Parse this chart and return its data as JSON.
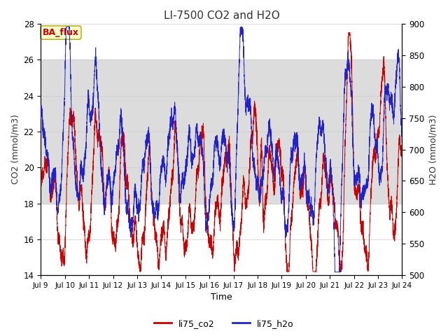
{
  "title": "LI-7500 CO2 and H2O",
  "xlabel": "Time",
  "ylabel_left": "CO2 (mmol/m3)",
  "ylabel_right": "H2O (mmol/m3)",
  "annotation_text": "BA_flux",
  "annotation_color": "#cc0000",
  "annotation_bg": "#ffffcc",
  "annotation_border": "#aaaa00",
  "xlim": [
    9,
    24
  ],
  "ylim_co2": [
    14,
    28
  ],
  "ylim_h2o": [
    500,
    900
  ],
  "xticks": [
    9,
    10,
    11,
    12,
    13,
    14,
    15,
    16,
    17,
    18,
    19,
    20,
    21,
    22,
    23,
    24
  ],
  "xticklabels": [
    "Jul 9",
    "Jul 10",
    "Jul 11",
    "Jul 12",
    "Jul 13",
    "Jul 14",
    "Jul 15",
    "Jul 16",
    "Jul 17",
    "Jul 18",
    "Jul 19",
    "Jul 20",
    "Jul 21",
    "Jul 22",
    "Jul 23",
    "Jul 24"
  ],
  "yticks_co2": [
    14,
    16,
    18,
    20,
    22,
    24,
    26,
    28
  ],
  "yticks_h2o": [
    500,
    550,
    600,
    650,
    700,
    750,
    800,
    850,
    900
  ],
  "shade_ymin": 18,
  "shade_ymax": 26,
  "color_co2": "#cc0000",
  "color_h2o": "#2222cc",
  "legend_label_co2": "li75_co2",
  "legend_label_h2o": "li75_h2o",
  "background_color": "#ffffff",
  "grid_color": "#cccccc",
  "shade_color": "#dcdcdc",
  "linewidth": 0.7
}
